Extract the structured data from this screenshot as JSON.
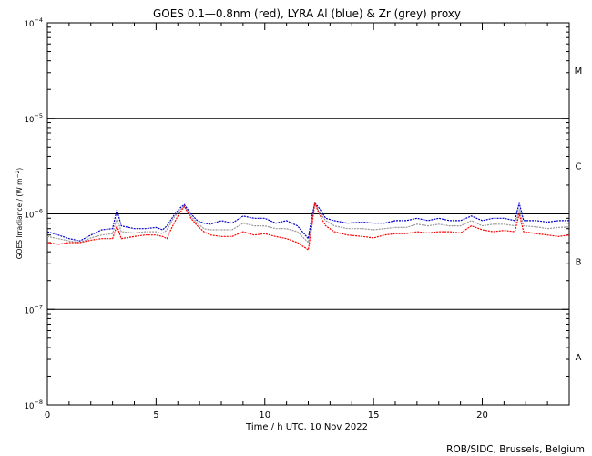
{
  "chart_data": {
    "type": "line",
    "title": "GOES 0.1—0.8nm (red), LYRA Al (blue) & Zr (grey) proxy",
    "xlabel": "Time / h UTC, 10 Nov 2022",
    "ylabel": "GOES Irradiance / (W m⁻²)",
    "xlim": [
      0,
      24
    ],
    "ylim": [
      1e-08,
      0.0001
    ],
    "yscale": "log",
    "x_ticks": [
      0,
      5,
      10,
      15,
      20
    ],
    "x_tick_labels": [
      "0",
      "5",
      "10",
      "15",
      "20"
    ],
    "y_tick_labels": [
      {
        "value": 1e-08,
        "base": "10",
        "exp": "-8"
      },
      {
        "value": 1e-07,
        "base": "10",
        "exp": "-7"
      },
      {
        "value": 1e-06,
        "base": "10",
        "exp": "-6"
      },
      {
        "value": 1e-05,
        "base": "10",
        "exp": "-5"
      },
      {
        "value": 0.0001,
        "base": "10",
        "exp": "-4"
      }
    ],
    "flare_class_lines": [
      1e-07,
      1e-06,
      1e-05
    ],
    "flare_classes": [
      {
        "label": "A",
        "value": 3.2e-08
      },
      {
        "label": "B",
        "value": 3.2e-07
      },
      {
        "label": "C",
        "value": 3.2e-06
      },
      {
        "label": "M",
        "value": 3.2e-05
      }
    ],
    "credit": "ROB/SIDC, Brussels, Belgium",
    "series": [
      {
        "name": "GOES 0.1—0.8nm",
        "color": "#ff0000",
        "points": [
          [
            0.0,
            5e-07
          ],
          [
            0.5,
            4.8e-07
          ],
          [
            1.0,
            5e-07
          ],
          [
            1.5,
            5e-07
          ],
          [
            2.0,
            5.3e-07
          ],
          [
            2.5,
            5.5e-07
          ],
          [
            3.0,
            5.5e-07
          ],
          [
            3.2,
            7.5e-07
          ],
          [
            3.4,
            5.5e-07
          ],
          [
            4.0,
            5.8e-07
          ],
          [
            4.5,
            6e-07
          ],
          [
            5.0,
            6e-07
          ],
          [
            5.3,
            5.8e-07
          ],
          [
            5.5,
            5.5e-07
          ],
          [
            5.7,
            7e-07
          ],
          [
            6.0,
            9.5e-07
          ],
          [
            6.3,
            1.2e-06
          ],
          [
            6.6,
            9e-07
          ],
          [
            6.9,
            7.5e-07
          ],
          [
            7.2,
            6.5e-07
          ],
          [
            7.5,
            6e-07
          ],
          [
            8.0,
            5.8e-07
          ],
          [
            8.5,
            5.8e-07
          ],
          [
            9.0,
            6.5e-07
          ],
          [
            9.5,
            6e-07
          ],
          [
            10.0,
            6.2e-07
          ],
          [
            10.5,
            5.8e-07
          ],
          [
            11.0,
            5.5e-07
          ],
          [
            11.5,
            5e-07
          ],
          [
            12.0,
            4.2e-07
          ],
          [
            12.15,
            7e-07
          ],
          [
            12.3,
            1.3e-06
          ],
          [
            12.5,
            1e-06
          ],
          [
            12.8,
            7.5e-07
          ],
          [
            13.2,
            6.5e-07
          ],
          [
            13.8,
            6e-07
          ],
          [
            14.5,
            5.8e-07
          ],
          [
            15.0,
            5.6e-07
          ],
          [
            15.5,
            6e-07
          ],
          [
            16.0,
            6.2e-07
          ],
          [
            16.5,
            6.2e-07
          ],
          [
            17.0,
            6.5e-07
          ],
          [
            17.5,
            6.3e-07
          ],
          [
            18.0,
            6.5e-07
          ],
          [
            18.5,
            6.5e-07
          ],
          [
            19.0,
            6.3e-07
          ],
          [
            19.5,
            7.5e-07
          ],
          [
            20.0,
            6.8e-07
          ],
          [
            20.5,
            6.5e-07
          ],
          [
            21.0,
            6.7e-07
          ],
          [
            21.5,
            6.5e-07
          ],
          [
            21.7,
            1e-06
          ],
          [
            21.9,
            6.5e-07
          ],
          [
            22.5,
            6.2e-07
          ],
          [
            23.0,
            6e-07
          ],
          [
            23.5,
            5.8e-07
          ],
          [
            24.0,
            6e-07
          ]
        ]
      },
      {
        "name": "LYRA Al",
        "color": "#0000cc",
        "points": [
          [
            0.0,
            6.5e-07
          ],
          [
            0.5,
            6e-07
          ],
          [
            1.0,
            5.5e-07
          ],
          [
            1.5,
            5.2e-07
          ],
          [
            2.0,
            6e-07
          ],
          [
            2.5,
            6.8e-07
          ],
          [
            3.0,
            7e-07
          ],
          [
            3.2,
            1.1e-06
          ],
          [
            3.4,
            7.5e-07
          ],
          [
            4.0,
            7e-07
          ],
          [
            4.5,
            7e-07
          ],
          [
            5.0,
            7.2e-07
          ],
          [
            5.3,
            6.8e-07
          ],
          [
            5.5,
            7.5e-07
          ],
          [
            5.8,
            9.5e-07
          ],
          [
            6.1,
            1.15e-06
          ],
          [
            6.3,
            1.25e-06
          ],
          [
            6.6,
            1e-06
          ],
          [
            6.9,
            8.5e-07
          ],
          [
            7.2,
            8e-07
          ],
          [
            7.5,
            7.8e-07
          ],
          [
            8.0,
            8.5e-07
          ],
          [
            8.5,
            8e-07
          ],
          [
            9.0,
            9.5e-07
          ],
          [
            9.5,
            9e-07
          ],
          [
            10.0,
            9e-07
          ],
          [
            10.5,
            8e-07
          ],
          [
            11.0,
            8.5e-07
          ],
          [
            11.5,
            7.5e-07
          ],
          [
            12.0,
            5.5e-07
          ],
          [
            12.15,
            9e-07
          ],
          [
            12.3,
            1.3e-06
          ],
          [
            12.5,
            1.15e-06
          ],
          [
            12.8,
            9e-07
          ],
          [
            13.2,
            8.5e-07
          ],
          [
            13.8,
            8e-07
          ],
          [
            14.5,
            8.2e-07
          ],
          [
            15.0,
            8e-07
          ],
          [
            15.5,
            8e-07
          ],
          [
            16.0,
            8.5e-07
          ],
          [
            16.5,
            8.5e-07
          ],
          [
            17.0,
            9e-07
          ],
          [
            17.5,
            8.5e-07
          ],
          [
            18.0,
            9e-07
          ],
          [
            18.5,
            8.5e-07
          ],
          [
            19.0,
            8.5e-07
          ],
          [
            19.5,
            9.5e-07
          ],
          [
            20.0,
            8.5e-07
          ],
          [
            20.5,
            9e-07
          ],
          [
            21.0,
            9e-07
          ],
          [
            21.5,
            8.5e-07
          ],
          [
            21.7,
            1.3e-06
          ],
          [
            21.9,
            8.5e-07
          ],
          [
            22.5,
            8.5e-07
          ],
          [
            23.0,
            8.2e-07
          ],
          [
            23.5,
            8.5e-07
          ],
          [
            24.0,
            8.5e-07
          ]
        ]
      },
      {
        "name": "Zr",
        "color": "#999999",
        "points": [
          [
            0.0,
            5.8e-07
          ],
          [
            0.5,
            5.5e-07
          ],
          [
            1.0,
            5.2e-07
          ],
          [
            1.5,
            5e-07
          ],
          [
            2.0,
            5.6e-07
          ],
          [
            2.5,
            6e-07
          ],
          [
            3.0,
            6.2e-07
          ],
          [
            3.2,
            9e-07
          ],
          [
            3.4,
            6.5e-07
          ],
          [
            4.0,
            6.3e-07
          ],
          [
            4.5,
            6.5e-07
          ],
          [
            5.0,
            6.5e-07
          ],
          [
            5.3,
            6.2e-07
          ],
          [
            5.5,
            6.8e-07
          ],
          [
            5.8,
            9e-07
          ],
          [
            6.1,
            1.1e-06
          ],
          [
            6.3,
            1.2e-06
          ],
          [
            6.6,
            9.5e-07
          ],
          [
            6.9,
            8e-07
          ],
          [
            7.2,
            7e-07
          ],
          [
            7.5,
            6.8e-07
          ],
          [
            8.0,
            6.8e-07
          ],
          [
            8.5,
            6.8e-07
          ],
          [
            9.0,
            8e-07
          ],
          [
            9.5,
            7.5e-07
          ],
          [
            10.0,
            7.5e-07
          ],
          [
            10.5,
            7e-07
          ],
          [
            11.0,
            7e-07
          ],
          [
            11.5,
            6.5e-07
          ],
          [
            12.0,
            5e-07
          ],
          [
            12.15,
            8e-07
          ],
          [
            12.3,
            1.3e-06
          ],
          [
            12.5,
            1.05e-06
          ],
          [
            12.8,
            8.5e-07
          ],
          [
            13.2,
            7.5e-07
          ],
          [
            13.8,
            7e-07
          ],
          [
            14.5,
            7e-07
          ],
          [
            15.0,
            6.8e-07
          ],
          [
            15.5,
            7e-07
          ],
          [
            16.0,
            7.2e-07
          ],
          [
            16.5,
            7.2e-07
          ],
          [
            17.0,
            7.8e-07
          ],
          [
            17.5,
            7.5e-07
          ],
          [
            18.0,
            7.8e-07
          ],
          [
            18.5,
            7.5e-07
          ],
          [
            19.0,
            7.5e-07
          ],
          [
            19.5,
            8.5e-07
          ],
          [
            20.0,
            7.5e-07
          ],
          [
            20.5,
            7.8e-07
          ],
          [
            21.0,
            7.8e-07
          ],
          [
            21.5,
            7.5e-07
          ],
          [
            21.7,
            1.1e-06
          ],
          [
            21.9,
            7.5e-07
          ],
          [
            22.5,
            7.3e-07
          ],
          [
            23.0,
            7e-07
          ],
          [
            23.5,
            7.2e-07
          ],
          [
            24.0,
            7.3e-07
          ]
        ]
      }
    ]
  }
}
